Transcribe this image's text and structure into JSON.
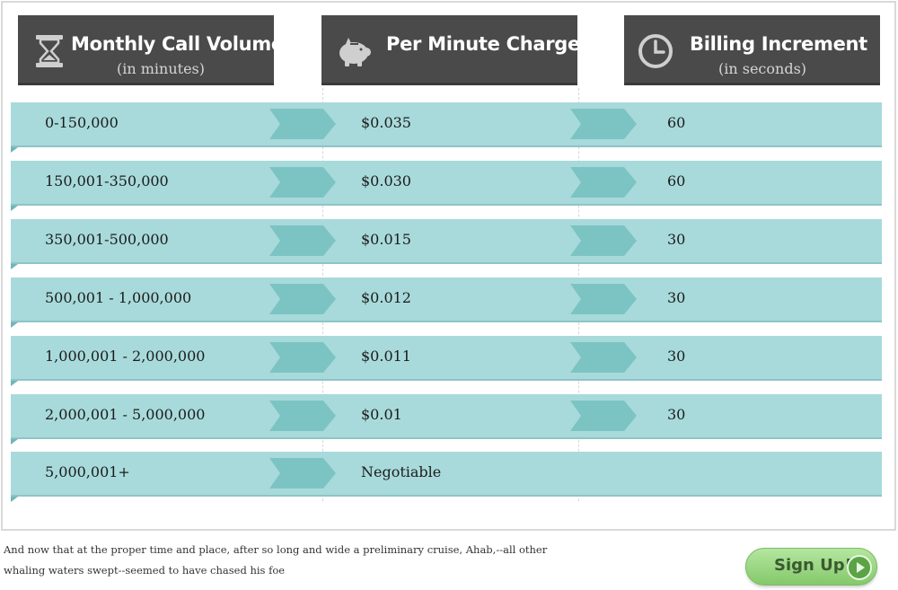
{
  "headers": [
    {
      "title": "Monthly Call Volume",
      "subtitle": "(in minutes)",
      "icon": "hourglass-icon"
    },
    {
      "title": "Per Minute Charge",
      "subtitle": "",
      "icon": "piggy-bank-icon"
    },
    {
      "title": "Billing Increment",
      "subtitle": "(in seconds)",
      "icon": "clock-icon"
    }
  ],
  "rows": [
    {
      "volume": "0-150,000",
      "charge": "$0.035",
      "increment": "60"
    },
    {
      "volume": "150,001-350,000",
      "charge": "$0.030",
      "increment": "60"
    },
    {
      "volume": "350,001-500,000",
      "charge": "$0.015",
      "increment": "30"
    },
    {
      "volume": "500,001 - 1,000,000",
      "charge": "$0.012",
      "increment": "30"
    },
    {
      "volume": "1,000,001 - 2,000,000",
      "charge": "$0.011",
      "increment": "30"
    },
    {
      "volume": "2,000,001 - 5,000,000",
      "charge": "$0.01",
      "increment": "30"
    },
    {
      "volume": "5,000,001+",
      "charge": "Negotiable",
      "increment": ""
    }
  ],
  "footer": {
    "line1": "And now that at the proper time and place, after so long and wide a preliminary cruise, Ahab,--all other",
    "line2": "whaling waters swept--seemed to have chased his foe"
  },
  "signup": {
    "label": "Sign Up!",
    "icon": "play-icon"
  },
  "colors": {
    "header_bg": "#4a4a4a",
    "row_bg": "#a8dadb",
    "chevron": "#7cc4c3",
    "signup_green": "#84c96a"
  }
}
